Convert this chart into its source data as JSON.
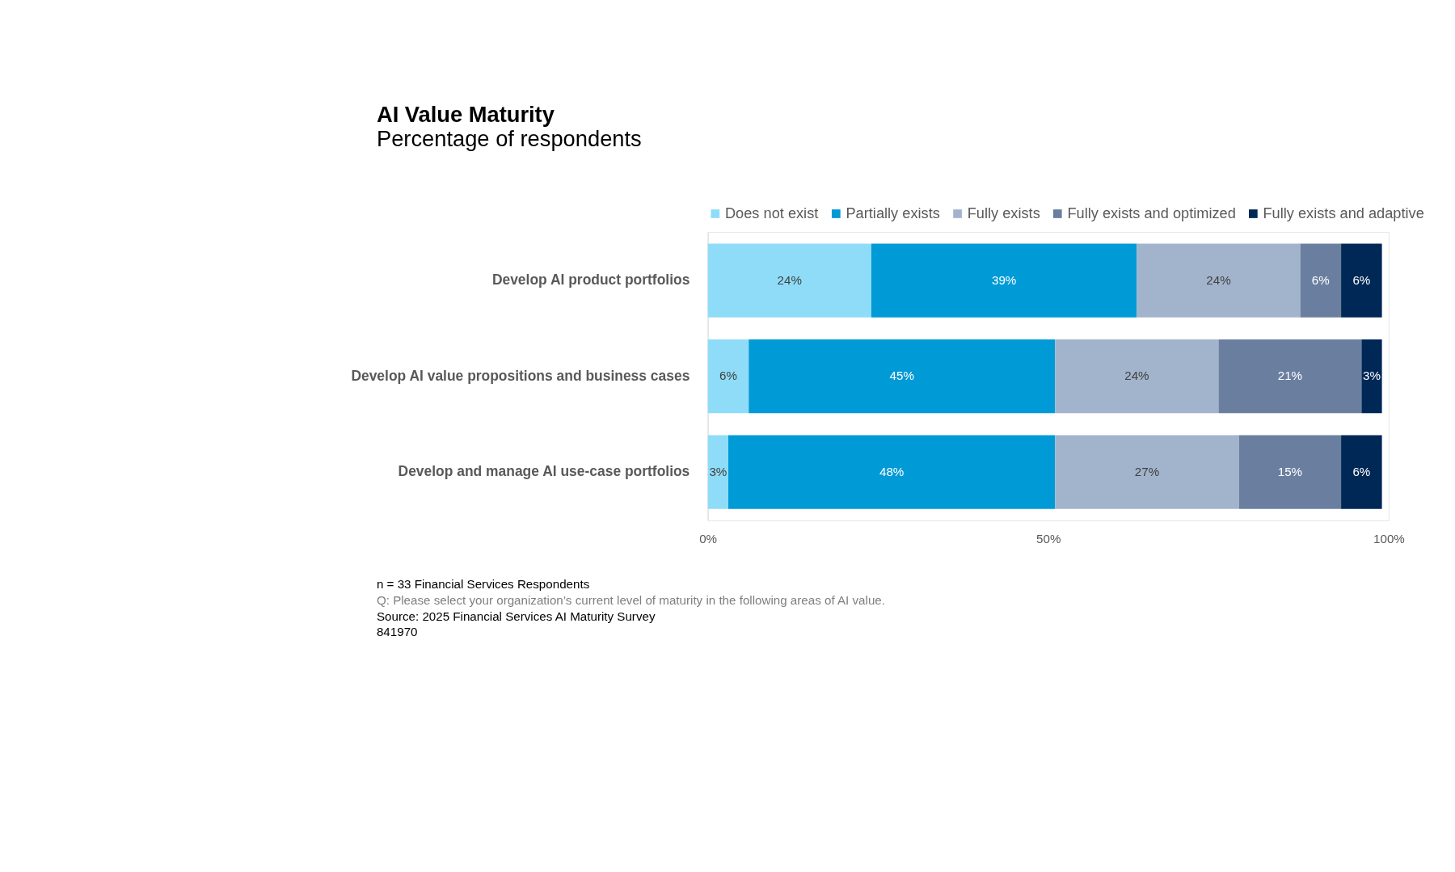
{
  "chart_data": {
    "type": "bar",
    "orientation": "horizontal",
    "stacked": true,
    "title": "AI Value Maturity",
    "subtitle": "Percentage of respondents",
    "categories": [
      "Develop AI product portfolios",
      "Develop AI value propositions and business cases",
      "Develop and manage AI use-case portfolios"
    ],
    "series": [
      {
        "name": "Does not exist",
        "color": "#8fdcf8",
        "values": [
          24,
          6,
          3
        ],
        "value_labels": [
          "24%",
          "6%",
          "3%"
        ]
      },
      {
        "name": "Partially exists",
        "color": "#009ad6",
        "values": [
          39,
          45,
          48
        ],
        "value_labels": [
          "39%",
          "45%",
          "48%"
        ]
      },
      {
        "name": "Fully exists",
        "color": "#a2b4cc",
        "values": [
          24,
          24,
          27
        ],
        "value_labels": [
          "24%",
          "24%",
          "27%"
        ]
      },
      {
        "name": "Fully exists and optimized",
        "color": "#6a7fa0",
        "values": [
          6,
          21,
          15
        ],
        "value_labels": [
          "6%",
          "21%",
          "15%"
        ]
      },
      {
        "name": "Fully exists and adaptive",
        "color": "#002856",
        "values": [
          6,
          3,
          6
        ],
        "value_labels": [
          "6%",
          "3%",
          "6%"
        ]
      }
    ],
    "xlim": [
      0,
      100
    ],
    "xticks": [
      {
        "value": 0,
        "label": "0%"
      },
      {
        "value": 50,
        "label": "50%"
      },
      {
        "value": 100,
        "label": "100%"
      }
    ],
    "grid": false,
    "legend": "top right",
    "annotations": [
      "n = 33 Financial Services Respondents",
      "Q: Please select your organization’s current level of maturity in the following areas of AI value.",
      "Source: 2025 Financial Services AI Maturity Survey",
      "841970"
    ]
  }
}
